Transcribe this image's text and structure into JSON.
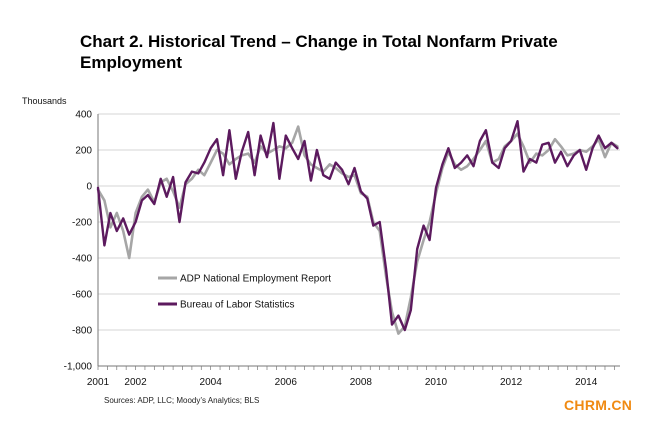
{
  "chart_data": {
    "type": "line",
    "title": "Chart 2. Historical Trend – Change in Total Nonfarm Private Employment",
    "ylabel": "Thousands",
    "xlabel": "",
    "ylim": [
      -1000,
      400
    ],
    "xlim": [
      2001,
      2014.9
    ],
    "yticks": [
      400,
      200,
      0,
      -200,
      -400,
      -600,
      -800,
      -1000
    ],
    "ytick_labels": [
      "400",
      "200",
      "0",
      "-200",
      "-400",
      "-600",
      "-800",
      "-1,000"
    ],
    "xticks": [
      2001,
      2002,
      2004,
      2006,
      2008,
      2010,
      2012,
      2014
    ],
    "xtick_labels": [
      "2001",
      "2002",
      "2004",
      "2006",
      "2008",
      "2010",
      "2012",
      "2014"
    ],
    "grid": "horizontal",
    "legend_position": "center-left",
    "series": [
      {
        "name": "ADP National Employment Report",
        "color": "#a6a6a6",
        "x": [
          2001.0,
          2001.17,
          2001.33,
          2001.5,
          2001.67,
          2001.83,
          2002.0,
          2002.17,
          2002.33,
          2002.5,
          2002.67,
          2002.83,
          2003.0,
          2003.17,
          2003.33,
          2003.5,
          2003.67,
          2003.83,
          2004.0,
          2004.17,
          2004.33,
          2004.5,
          2004.67,
          2004.83,
          2005.0,
          2005.17,
          2005.33,
          2005.5,
          2005.67,
          2005.83,
          2006.0,
          2006.17,
          2006.33,
          2006.5,
          2006.67,
          2006.83,
          2007.0,
          2007.17,
          2007.33,
          2007.5,
          2007.67,
          2007.83,
          2008.0,
          2008.17,
          2008.33,
          2008.5,
          2008.67,
          2008.83,
          2009.0,
          2009.17,
          2009.33,
          2009.5,
          2009.67,
          2009.83,
          2010.0,
          2010.17,
          2010.33,
          2010.5,
          2010.67,
          2010.83,
          2011.0,
          2011.17,
          2011.33,
          2011.5,
          2011.67,
          2011.83,
          2012.0,
          2012.17,
          2012.33,
          2012.5,
          2012.67,
          2012.83,
          2013.0,
          2013.17,
          2013.33,
          2013.5,
          2013.67,
          2013.83,
          2014.0,
          2014.17,
          2014.33,
          2014.5,
          2014.67,
          2014.83
        ],
        "values": [
          -20,
          -80,
          -230,
          -150,
          -250,
          -400,
          -150,
          -60,
          -20,
          -90,
          20,
          40,
          -30,
          -120,
          10,
          40,
          90,
          60,
          130,
          200,
          180,
          120,
          150,
          170,
          180,
          130,
          220,
          180,
          200,
          220,
          210,
          240,
          330,
          170,
          120,
          100,
          80,
          120,
          100,
          70,
          50,
          60,
          -40,
          -60,
          -200,
          -250,
          -500,
          -700,
          -820,
          -780,
          -620,
          -420,
          -300,
          -200,
          -40,
          100,
          190,
          120,
          90,
          110,
          150,
          200,
          250,
          130,
          150,
          220,
          250,
          290,
          220,
          130,
          180,
          170,
          200,
          260,
          220,
          170,
          180,
          200,
          190,
          220,
          260,
          160,
          240,
          220
        ]
      },
      {
        "name": "Bureau of Labor Statistics",
        "color": "#5c1a5e",
        "x": [
          2001.0,
          2001.17,
          2001.33,
          2001.5,
          2001.67,
          2001.83,
          2002.0,
          2002.17,
          2002.33,
          2002.5,
          2002.67,
          2002.83,
          2003.0,
          2003.17,
          2003.33,
          2003.5,
          2003.67,
          2003.83,
          2004.0,
          2004.17,
          2004.33,
          2004.5,
          2004.67,
          2004.83,
          2005.0,
          2005.17,
          2005.33,
          2005.5,
          2005.67,
          2005.83,
          2006.0,
          2006.17,
          2006.33,
          2006.5,
          2006.67,
          2006.83,
          2007.0,
          2007.17,
          2007.33,
          2007.5,
          2007.67,
          2007.83,
          2008.0,
          2008.17,
          2008.33,
          2008.5,
          2008.67,
          2008.83,
          2009.0,
          2009.17,
          2009.33,
          2009.5,
          2009.67,
          2009.83,
          2010.0,
          2010.17,
          2010.33,
          2010.5,
          2010.67,
          2010.83,
          2011.0,
          2011.17,
          2011.33,
          2011.5,
          2011.67,
          2011.83,
          2012.0,
          2012.17,
          2012.33,
          2012.5,
          2012.67,
          2012.83,
          2013.0,
          2013.17,
          2013.33,
          2013.5,
          2013.67,
          2013.83,
          2014.0,
          2014.17,
          2014.33,
          2014.5,
          2014.67,
          2014.83
        ],
        "values": [
          -10,
          -330,
          -150,
          -250,
          -180,
          -270,
          -200,
          -80,
          -50,
          -100,
          40,
          -60,
          50,
          -200,
          20,
          80,
          70,
          130,
          210,
          260,
          60,
          310,
          40,
          190,
          300,
          60,
          280,
          160,
          350,
          40,
          280,
          210,
          150,
          250,
          30,
          200,
          60,
          40,
          130,
          90,
          10,
          100,
          -30,
          -70,
          -220,
          -200,
          -460,
          -770,
          -720,
          -800,
          -690,
          -350,
          -220,
          -300,
          -10,
          120,
          210,
          100,
          130,
          170,
          110,
          250,
          310,
          130,
          100,
          210,
          250,
          360,
          80,
          150,
          130,
          230,
          240,
          130,
          190,
          110,
          170,
          200,
          90,
          210,
          280,
          210,
          240,
          210
        ]
      }
    ]
  },
  "source": "Sources: ADP, LLC; Moody’s Analytics; BLS",
  "watermark": "CHRM.CN"
}
